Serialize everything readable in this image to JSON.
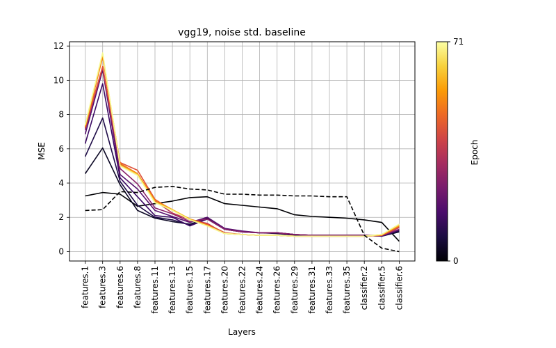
{
  "chart_data": {
    "type": "line",
    "title": "vgg19, noise std. baseline",
    "xlabel": "Layers",
    "ylabel": "MSE",
    "ylim": [
      -0.55,
      12.25
    ],
    "yticks": [
      0,
      2,
      4,
      6,
      8,
      10,
      12
    ],
    "grid": true,
    "categories": [
      "features.1",
      "features.3",
      "features.6",
      "features.8",
      "features.11",
      "features.13",
      "features.15",
      "features.17",
      "features.20",
      "features.22",
      "features.24",
      "features.26",
      "features.29",
      "features.31",
      "features.33",
      "features.35",
      "classifier.2",
      "classifier.5",
      "classifier.6"
    ],
    "series": [
      {
        "color": "#000004",
        "style": "solid",
        "values": [
          3.25,
          3.45,
          3.35,
          2.65,
          2.8,
          2.95,
          3.15,
          3.2,
          2.8,
          2.7,
          2.6,
          2.5,
          2.15,
          2.05,
          2.0,
          1.95,
          1.85,
          1.7,
          0.6
        ]
      },
      {
        "color": "#0b0724",
        "style": "solid",
        "values": [
          4.55,
          6.05,
          3.9,
          2.4,
          1.95,
          1.75,
          1.6,
          1.95,
          1.3,
          1.15,
          1.1,
          1.1,
          1.0,
          0.95,
          0.95,
          0.95,
          0.95,
          0.9,
          1.15
        ]
      },
      {
        "color": "#1f0c48",
        "style": "solid",
        "values": [
          5.55,
          7.8,
          4.1,
          2.7,
          2.0,
          1.85,
          1.55,
          1.9,
          1.3,
          1.15,
          1.1,
          1.05,
          0.95,
          0.95,
          0.95,
          0.95,
          0.95,
          0.9,
          1.2
        ]
      },
      {
        "color": "#3a0963",
        "style": "solid",
        "values": [
          6.3,
          9.8,
          4.3,
          3.2,
          2.1,
          2.0,
          1.5,
          1.9,
          1.3,
          1.15,
          1.1,
          1.1,
          1.0,
          0.95,
          0.95,
          0.95,
          0.95,
          0.9,
          1.25
        ]
      },
      {
        "color": "#57106e",
        "style": "solid",
        "values": [
          6.85,
          10.6,
          4.5,
          3.65,
          2.4,
          2.05,
          1.7,
          2.0,
          1.35,
          1.2,
          1.1,
          1.1,
          1.0,
          0.95,
          0.95,
          0.95,
          0.95,
          0.9,
          1.3
        ]
      },
      {
        "color": "#8a226a",
        "style": "solid",
        "values": [
          7.1,
          10.75,
          4.85,
          3.95,
          2.55,
          2.2,
          1.75,
          1.9,
          1.3,
          1.15,
          1.1,
          1.1,
          1.0,
          0.95,
          0.95,
          0.95,
          0.95,
          0.95,
          1.3
        ]
      },
      {
        "color": "#bc3754",
        "style": "solid",
        "values": [
          7.2,
          10.75,
          5.1,
          4.5,
          2.95,
          2.25,
          1.85,
          1.65,
          1.05,
          1.0,
          0.95,
          0.95,
          0.9,
          0.9,
          0.9,
          0.9,
          0.9,
          0.95,
          1.4
        ]
      },
      {
        "color": "#dd513a",
        "style": "solid",
        "values": [
          7.3,
          10.8,
          5.2,
          4.75,
          3.05,
          2.4,
          1.9,
          1.6,
          1.1,
          1.0,
          0.95,
          0.95,
          0.9,
          0.9,
          0.9,
          0.9,
          0.9,
          0.95,
          1.45
        ]
      },
      {
        "color": "#f57d15",
        "style": "solid",
        "values": [
          7.25,
          11.35,
          5.15,
          4.55,
          3.0,
          2.45,
          1.9,
          1.55,
          1.05,
          1.0,
          0.95,
          0.95,
          0.9,
          0.9,
          0.9,
          0.9,
          0.9,
          0.95,
          1.5
        ]
      },
      {
        "color": "#fac228",
        "style": "solid",
        "values": [
          7.35,
          11.55,
          5.05,
          4.5,
          2.9,
          2.45,
          1.9,
          1.5,
          1.05,
          1.0,
          0.95,
          0.95,
          0.9,
          0.9,
          0.9,
          0.9,
          0.9,
          1.0,
          1.55
        ]
      },
      {
        "color": "#f5f992",
        "style": "solid",
        "values": [
          7.4,
          11.6,
          5.0,
          4.45,
          2.85,
          2.4,
          1.85,
          1.5,
          1.05,
          1.0,
          0.95,
          0.95,
          0.9,
          0.9,
          0.9,
          0.9,
          0.9,
          1.0,
          1.6
        ]
      },
      {
        "color": "#000000",
        "style": "dashed",
        "values": [
          2.4,
          2.45,
          3.5,
          3.45,
          3.75,
          3.8,
          3.65,
          3.6,
          3.35,
          3.35,
          3.3,
          3.3,
          3.25,
          3.25,
          3.2,
          3.2,
          0.95,
          0.2,
          0.0
        ]
      }
    ],
    "colorbar": {
      "label": "Epoch",
      "min_label": "0",
      "max_label": "71",
      "colormap": "inferno",
      "stops": [
        "#000004",
        "#1b0c41",
        "#4a0c6b",
        "#781c6d",
        "#a52c60",
        "#cf4446",
        "#ed6925",
        "#fb9b06",
        "#f7d13d",
        "#fcffa4"
      ]
    }
  }
}
